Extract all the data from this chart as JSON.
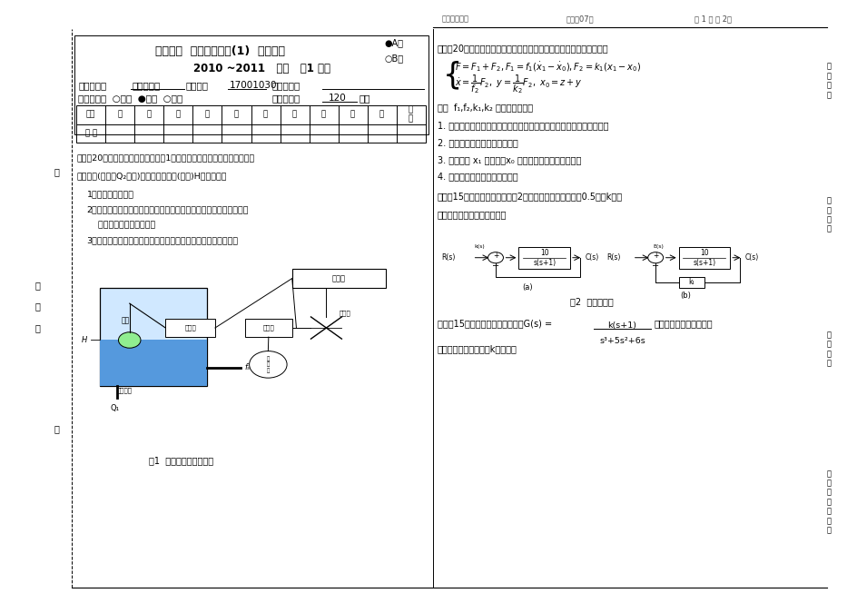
{
  "bg_color": "#ffffff",
  "page_width": 9.45,
  "page_height": 6.75,
  "header_text": "重庆大学试卷",
  "header_center": "教务处07版",
  "header_right": "第 1 页 共 2页",
  "title_line1": "重庆大学  自动控制原理(1)  课程试卷",
  "title_line2": "2010 ~2011   学年   第1 学期",
  "radio_A": "●A卷",
  "radio_B": "○B卷",
  "table_headers": [
    "题号",
    "一",
    "二",
    "三",
    "四",
    "五",
    "六",
    "七",
    "八",
    "九",
    "十",
    "总\n分"
  ],
  "table_row2": [
    "得 分",
    "",
    "",
    "",
    "",
    "",
    "",
    "",
    "",
    "",
    "",
    ""
  ],
  "fig1_caption": "图1  液位控制系统示意图",
  "fig2_caption": "图2  系统结构图",
  "left_sidebar": "装\n\n订\n\n线",
  "right_side_label1": "各\n题\n人\n：",
  "right_side_label2": "监\n题\n人\n：",
  "right_side_label3": "审\n题\n人\n：",
  "right_side_label4": "各\n题\n完\n成\n时\n间\n："
}
